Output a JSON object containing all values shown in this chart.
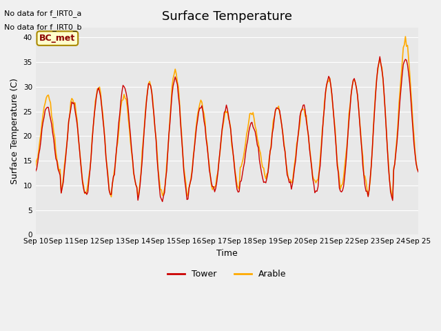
{
  "title": "Surface Temperature",
  "xlabel": "Time",
  "ylabel": "Surface Temperature (C)",
  "ylim": [
    0,
    42
  ],
  "yticks": [
    0,
    5,
    10,
    15,
    20,
    25,
    30,
    35,
    40
  ],
  "background_color": "#e8e8e8",
  "tower_color": "#cc0000",
  "arable_color": "#ffaa00",
  "text_above_chart": [
    "No data for f_IRT0_a",
    "No data for f_IRT0_b"
  ],
  "bc_met_label": "BC_met",
  "bc_met_bg": "#ffffcc",
  "bc_met_border": "#aa8800",
  "legend_tower": "Tower",
  "legend_arable": "Arable",
  "n_days": 15,
  "xtick_labels": [
    "Sep 10",
    "Sep 11",
    "Sep 12",
    "Sep 13",
    "Sep 14",
    "Sep 15",
    "Sep 16",
    "Sep 17",
    "Sep 18",
    "Sep 19",
    "Sep 20",
    "Sep 21",
    "Sep 22",
    "Sep 23",
    "Sep 24",
    "Sep 25"
  ],
  "tower_daily_peaks": [
    26.0,
    27.0,
    29.5,
    30.2,
    30.5,
    32.0,
    25.9,
    25.5,
    22.5,
    26.0,
    26.0,
    32.0,
    31.5,
    35.5,
    36.0
  ],
  "tower_daily_mins": [
    12.5,
    8.3,
    7.7,
    10.0,
    6.5,
    7.2,
    9.2,
    8.5,
    10.5,
    10.5,
    9.2,
    8.5,
    8.5,
    7.0,
    13.0
  ],
  "arable_daily_peaks": [
    28.0,
    27.5,
    29.5,
    28.5,
    30.8,
    33.0,
    27.0,
    25.0,
    24.5,
    26.0,
    25.5,
    31.8,
    31.5,
    35.5,
    39.5
  ],
  "arable_daily_mins": [
    13.5,
    8.5,
    8.5,
    10.0,
    7.5,
    8.0,
    9.5,
    9.3,
    13.0,
    11.0,
    10.0,
    10.0,
    10.0,
    7.5,
    13.0
  ]
}
